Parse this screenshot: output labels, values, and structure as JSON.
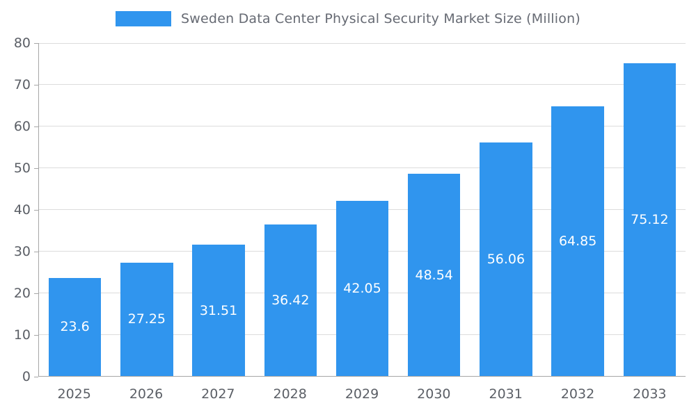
{
  "legend": {
    "label": "Sweden Data Center Physical Security Market Size (Million)"
  },
  "colors": {
    "bar": "#3095ee",
    "grid": "#dcdcdc",
    "axis": "#a6a6a6",
    "tick_text": "#5b5f66",
    "bar_label_text": "#ffffff"
  },
  "chart_data": {
    "type": "bar",
    "title": "Sweden Data Center Physical Security Market Size (Million)",
    "categories": [
      "2025",
      "2026",
      "2027",
      "2028",
      "2029",
      "2030",
      "2031",
      "2032",
      "2033"
    ],
    "values": [
      23.6,
      27.25,
      31.51,
      36.42,
      42.05,
      48.54,
      56.06,
      64.85,
      75.12
    ],
    "value_labels": [
      "23.6",
      "27.25",
      "31.51",
      "36.42",
      "42.05",
      "48.54",
      "56.06",
      "64.85",
      "75.12"
    ],
    "xlabel": "",
    "ylabel": "",
    "ylim": [
      0,
      80
    ],
    "yticks": [
      0,
      10,
      20,
      30,
      40,
      50,
      60,
      70,
      80
    ],
    "grid": true,
    "legend_position": "top"
  }
}
